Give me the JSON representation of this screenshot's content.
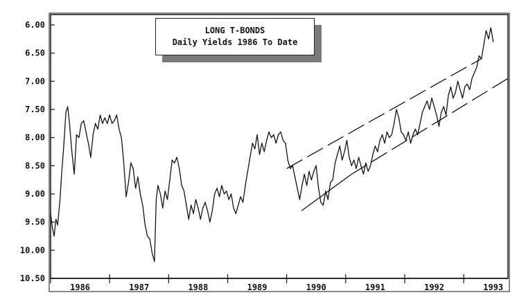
{
  "chart_data": {
    "type": "line",
    "title": "LONG T-BONDS",
    "subtitle": "Daily Yields 1986 To Date",
    "xlabel": "",
    "ylabel": "",
    "y_inverted": true,
    "ylim": [
      6.0,
      10.5
    ],
    "y_ticks": [
      "6.00",
      "6.50",
      "7.00",
      "7.50",
      "8.00",
      "8.50",
      "9.00",
      "9.50",
      "10.00",
      "10.50"
    ],
    "x_range": [
      1986.0,
      1993.75
    ],
    "x_ticks": [
      "1986",
      "1987",
      "1988",
      "1989",
      "1990",
      "1991",
      "1992",
      "1993"
    ],
    "grid": false,
    "legend": "none",
    "line_color": "#111111",
    "series": [
      {
        "values": [
          {
            "x": 1986.0,
            "y": 9.35
          },
          {
            "x": 1986.03,
            "y": 9.6
          },
          {
            "x": 1986.06,
            "y": 9.75
          },
          {
            "x": 1986.09,
            "y": 9.45
          },
          {
            "x": 1986.12,
            "y": 9.55
          },
          {
            "x": 1986.16,
            "y": 9.1
          },
          {
            "x": 1986.19,
            "y": 8.6
          },
          {
            "x": 1986.22,
            "y": 8.2
          },
          {
            "x": 1986.26,
            "y": 7.55
          },
          {
            "x": 1986.29,
            "y": 7.45
          },
          {
            "x": 1986.32,
            "y": 7.75
          },
          {
            "x": 1986.36,
            "y": 8.25
          },
          {
            "x": 1986.4,
            "y": 8.65
          },
          {
            "x": 1986.44,
            "y": 7.95
          },
          {
            "x": 1986.48,
            "y": 8.0
          },
          {
            "x": 1986.52,
            "y": 7.75
          },
          {
            "x": 1986.56,
            "y": 7.7
          },
          {
            "x": 1986.6,
            "y": 7.9
          },
          {
            "x": 1986.64,
            "y": 8.1
          },
          {
            "x": 1986.68,
            "y": 8.35
          },
          {
            "x": 1986.72,
            "y": 7.95
          },
          {
            "x": 1986.76,
            "y": 7.75
          },
          {
            "x": 1986.8,
            "y": 7.85
          },
          {
            "x": 1986.84,
            "y": 7.6
          },
          {
            "x": 1986.88,
            "y": 7.75
          },
          {
            "x": 1986.92,
            "y": 7.65
          },
          {
            "x": 1986.96,
            "y": 7.75
          },
          {
            "x": 1987.0,
            "y": 7.6
          },
          {
            "x": 1987.04,
            "y": 7.75
          },
          {
            "x": 1987.08,
            "y": 7.7
          },
          {
            "x": 1987.12,
            "y": 7.6
          },
          {
            "x": 1987.16,
            "y": 7.85
          },
          {
            "x": 1987.2,
            "y": 8.0
          },
          {
            "x": 1987.24,
            "y": 8.45
          },
          {
            "x": 1987.28,
            "y": 9.05
          },
          {
            "x": 1987.32,
            "y": 8.8
          },
          {
            "x": 1987.36,
            "y": 8.45
          },
          {
            "x": 1987.4,
            "y": 8.55
          },
          {
            "x": 1987.44,
            "y": 8.9
          },
          {
            "x": 1987.48,
            "y": 8.7
          },
          {
            "x": 1987.52,
            "y": 9.0
          },
          {
            "x": 1987.56,
            "y": 9.2
          },
          {
            "x": 1987.6,
            "y": 9.55
          },
          {
            "x": 1987.64,
            "y": 9.75
          },
          {
            "x": 1987.68,
            "y": 9.8
          },
          {
            "x": 1987.72,
            "y": 10.05
          },
          {
            "x": 1987.76,
            "y": 10.2
          },
          {
            "x": 1987.79,
            "y": 9.1
          },
          {
            "x": 1987.82,
            "y": 8.85
          },
          {
            "x": 1987.86,
            "y": 9.0
          },
          {
            "x": 1987.9,
            "y": 9.25
          },
          {
            "x": 1987.94,
            "y": 8.95
          },
          {
            "x": 1987.98,
            "y": 9.1
          },
          {
            "x": 1988.02,
            "y": 8.75
          },
          {
            "x": 1988.06,
            "y": 8.4
          },
          {
            "x": 1988.1,
            "y": 8.45
          },
          {
            "x": 1988.14,
            "y": 8.35
          },
          {
            "x": 1988.18,
            "y": 8.55
          },
          {
            "x": 1988.22,
            "y": 8.85
          },
          {
            "x": 1988.26,
            "y": 8.95
          },
          {
            "x": 1988.3,
            "y": 9.2
          },
          {
            "x": 1988.34,
            "y": 9.45
          },
          {
            "x": 1988.38,
            "y": 9.2
          },
          {
            "x": 1988.42,
            "y": 9.35
          },
          {
            "x": 1988.46,
            "y": 9.1
          },
          {
            "x": 1988.5,
            "y": 9.25
          },
          {
            "x": 1988.54,
            "y": 9.45
          },
          {
            "x": 1988.58,
            "y": 9.25
          },
          {
            "x": 1988.62,
            "y": 9.15
          },
          {
            "x": 1988.66,
            "y": 9.3
          },
          {
            "x": 1988.7,
            "y": 9.5
          },
          {
            "x": 1988.74,
            "y": 9.3
          },
          {
            "x": 1988.78,
            "y": 9.0
          },
          {
            "x": 1988.82,
            "y": 8.9
          },
          {
            "x": 1988.86,
            "y": 9.05
          },
          {
            "x": 1988.9,
            "y": 8.85
          },
          {
            "x": 1988.94,
            "y": 9.0
          },
          {
            "x": 1988.98,
            "y": 8.95
          },
          {
            "x": 1989.02,
            "y": 9.1
          },
          {
            "x": 1989.06,
            "y": 9.0
          },
          {
            "x": 1989.1,
            "y": 9.25
          },
          {
            "x": 1989.14,
            "y": 9.35
          },
          {
            "x": 1989.18,
            "y": 9.2
          },
          {
            "x": 1989.22,
            "y": 9.05
          },
          {
            "x": 1989.26,
            "y": 9.15
          },
          {
            "x": 1989.3,
            "y": 8.85
          },
          {
            "x": 1989.34,
            "y": 8.6
          },
          {
            "x": 1989.38,
            "y": 8.35
          },
          {
            "x": 1989.42,
            "y": 8.1
          },
          {
            "x": 1989.46,
            "y": 8.2
          },
          {
            "x": 1989.5,
            "y": 7.95
          },
          {
            "x": 1989.54,
            "y": 8.3
          },
          {
            "x": 1989.58,
            "y": 8.1
          },
          {
            "x": 1989.62,
            "y": 8.25
          },
          {
            "x": 1989.66,
            "y": 8.05
          },
          {
            "x": 1989.7,
            "y": 7.9
          },
          {
            "x": 1989.74,
            "y": 8.0
          },
          {
            "x": 1989.78,
            "y": 7.95
          },
          {
            "x": 1989.82,
            "y": 8.1
          },
          {
            "x": 1989.86,
            "y": 7.95
          },
          {
            "x": 1989.9,
            "y": 7.9
          },
          {
            "x": 1989.94,
            "y": 8.05
          },
          {
            "x": 1989.98,
            "y": 8.1
          },
          {
            "x": 1990.02,
            "y": 8.4
          },
          {
            "x": 1990.06,
            "y": 8.55
          },
          {
            "x": 1990.1,
            "y": 8.5
          },
          {
            "x": 1990.14,
            "y": 8.7
          },
          {
            "x": 1990.18,
            "y": 8.9
          },
          {
            "x": 1990.22,
            "y": 9.1
          },
          {
            "x": 1990.26,
            "y": 8.85
          },
          {
            "x": 1990.3,
            "y": 8.65
          },
          {
            "x": 1990.34,
            "y": 8.85
          },
          {
            "x": 1990.38,
            "y": 8.6
          },
          {
            "x": 1990.42,
            "y": 8.75
          },
          {
            "x": 1990.46,
            "y": 8.6
          },
          {
            "x": 1990.5,
            "y": 8.5
          },
          {
            "x": 1990.54,
            "y": 8.9
          },
          {
            "x": 1990.58,
            "y": 9.15
          },
          {
            "x": 1990.62,
            "y": 9.2
          },
          {
            "x": 1990.66,
            "y": 8.95
          },
          {
            "x": 1990.7,
            "y": 9.1
          },
          {
            "x": 1990.74,
            "y": 8.8
          },
          {
            "x": 1990.78,
            "y": 8.75
          },
          {
            "x": 1990.82,
            "y": 8.45
          },
          {
            "x": 1990.86,
            "y": 8.3
          },
          {
            "x": 1990.9,
            "y": 8.15
          },
          {
            "x": 1990.94,
            "y": 8.4
          },
          {
            "x": 1990.98,
            "y": 8.25
          },
          {
            "x": 1991.02,
            "y": 8.05
          },
          {
            "x": 1991.06,
            "y": 8.35
          },
          {
            "x": 1991.1,
            "y": 8.5
          },
          {
            "x": 1991.14,
            "y": 8.4
          },
          {
            "x": 1991.18,
            "y": 8.55
          },
          {
            "x": 1991.22,
            "y": 8.35
          },
          {
            "x": 1991.26,
            "y": 8.5
          },
          {
            "x": 1991.3,
            "y": 8.65
          },
          {
            "x": 1991.34,
            "y": 8.45
          },
          {
            "x": 1991.38,
            "y": 8.6
          },
          {
            "x": 1991.42,
            "y": 8.5
          },
          {
            "x": 1991.46,
            "y": 8.3
          },
          {
            "x": 1991.5,
            "y": 8.15
          },
          {
            "x": 1991.54,
            "y": 8.25
          },
          {
            "x": 1991.58,
            "y": 8.05
          },
          {
            "x": 1991.62,
            "y": 7.95
          },
          {
            "x": 1991.66,
            "y": 8.1
          },
          {
            "x": 1991.7,
            "y": 7.9
          },
          {
            "x": 1991.74,
            "y": 8.0
          },
          {
            "x": 1991.78,
            "y": 7.95
          },
          {
            "x": 1991.82,
            "y": 7.75
          },
          {
            "x": 1991.86,
            "y": 7.5
          },
          {
            "x": 1991.9,
            "y": 7.65
          },
          {
            "x": 1991.94,
            "y": 7.9
          },
          {
            "x": 1991.98,
            "y": 7.95
          },
          {
            "x": 1992.02,
            "y": 8.05
          },
          {
            "x": 1992.06,
            "y": 7.9
          },
          {
            "x": 1992.1,
            "y": 8.1
          },
          {
            "x": 1992.14,
            "y": 7.95
          },
          {
            "x": 1992.18,
            "y": 7.85
          },
          {
            "x": 1992.22,
            "y": 7.95
          },
          {
            "x": 1992.26,
            "y": 7.75
          },
          {
            "x": 1992.3,
            "y": 7.55
          },
          {
            "x": 1992.34,
            "y": 7.45
          },
          {
            "x": 1992.38,
            "y": 7.35
          },
          {
            "x": 1992.42,
            "y": 7.5
          },
          {
            "x": 1992.46,
            "y": 7.3
          },
          {
            "x": 1992.5,
            "y": 7.45
          },
          {
            "x": 1992.54,
            "y": 7.6
          },
          {
            "x": 1992.58,
            "y": 7.8
          },
          {
            "x": 1992.62,
            "y": 7.55
          },
          {
            "x": 1992.66,
            "y": 7.45
          },
          {
            "x": 1992.7,
            "y": 7.6
          },
          {
            "x": 1992.74,
            "y": 7.25
          },
          {
            "x": 1992.78,
            "y": 7.1
          },
          {
            "x": 1992.82,
            "y": 7.3
          },
          {
            "x": 1992.86,
            "y": 7.2
          },
          {
            "x": 1992.9,
            "y": 7.0
          },
          {
            "x": 1992.94,
            "y": 7.15
          },
          {
            "x": 1992.98,
            "y": 7.3
          },
          {
            "x": 1993.02,
            "y": 7.1
          },
          {
            "x": 1993.06,
            "y": 7.05
          },
          {
            "x": 1993.1,
            "y": 7.15
          },
          {
            "x": 1993.14,
            "y": 6.95
          },
          {
            "x": 1993.18,
            "y": 6.85
          },
          {
            "x": 1993.22,
            "y": 6.75
          },
          {
            "x": 1993.26,
            "y": 6.55
          },
          {
            "x": 1993.3,
            "y": 6.6
          },
          {
            "x": 1993.34,
            "y": 6.35
          },
          {
            "x": 1993.38,
            "y": 6.1
          },
          {
            "x": 1993.42,
            "y": 6.25
          },
          {
            "x": 1993.46,
            "y": 6.05
          },
          {
            "x": 1993.5,
            "y": 6.3
          }
        ]
      }
    ],
    "channel_lines": [
      {
        "style": "dashed",
        "x": [
          1990.0,
          1993.3
        ],
        "y": [
          8.55,
          6.6
        ]
      },
      {
        "style": "solid",
        "x": [
          1990.25,
          1991.1
        ],
        "y": [
          9.3,
          8.65
        ]
      },
      {
        "style": "dashed",
        "x": [
          1991.1,
          1993.75
        ],
        "y": [
          8.65,
          6.95
        ]
      }
    ]
  }
}
